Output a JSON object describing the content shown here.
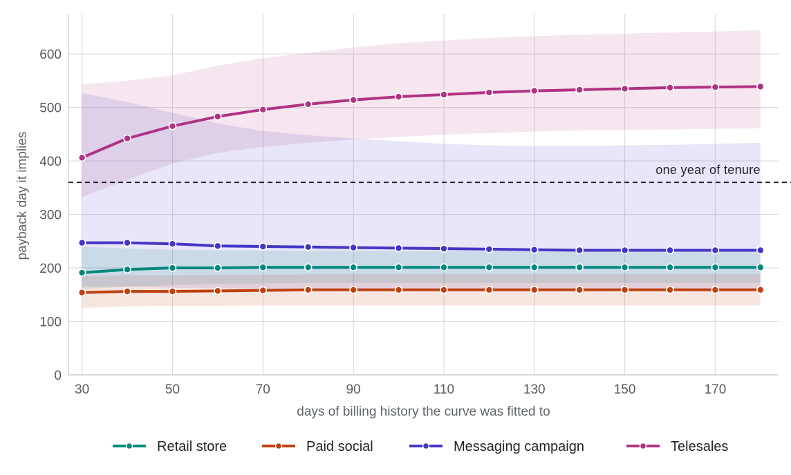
{
  "chart_data": {
    "type": "line",
    "title": "",
    "xlabel": "days of billing history the curve was fitted to",
    "ylabel": "payback day it implies",
    "x": [
      30,
      40,
      50,
      60,
      70,
      80,
      90,
      100,
      110,
      120,
      130,
      140,
      150,
      160,
      170,
      180
    ],
    "xticks": [
      30,
      50,
      70,
      90,
      110,
      130,
      150,
      170
    ],
    "yticks": [
      0,
      100,
      200,
      300,
      400,
      500,
      600
    ],
    "xlim": [
      27,
      184
    ],
    "ylim": [
      0,
      675
    ],
    "grid": true,
    "legend_position": "bottom",
    "reference_line": {
      "y": 360,
      "label": "one year of tenure",
      "style": "dashed",
      "color": "#1f2328"
    },
    "series": [
      {
        "name": "Retail store",
        "color": "#00897b",
        "values": [
          191,
          197,
          200,
          200,
          201,
          201,
          201,
          201,
          201,
          201,
          201,
          201,
          201,
          201,
          201,
          201
        ],
        "lower": [
          160,
          165,
          168,
          170,
          171,
          172,
          172,
          172,
          172,
          172,
          172,
          172,
          172,
          172,
          172,
          172
        ],
        "upper": [
          240,
          236,
          234,
          233,
          232,
          232,
          232,
          231,
          231,
          231,
          231,
          231,
          231,
          231,
          231,
          231
        ]
      },
      {
        "name": "Paid social",
        "color": "#bf400f",
        "values": [
          154,
          156,
          156,
          157,
          158,
          159,
          159,
          159,
          159,
          159,
          159,
          159,
          159,
          159,
          159,
          159
        ],
        "lower": [
          125,
          128,
          129,
          129,
          130,
          130,
          130,
          130,
          130,
          130,
          130,
          130,
          130,
          130,
          130,
          130
        ],
        "upper": [
          185,
          186,
          186,
          187,
          187,
          188,
          188,
          188,
          188,
          188,
          188,
          188,
          188,
          188,
          188,
          188
        ]
      },
      {
        "name": "Messaging campaign",
        "color": "#4434c8",
        "values": [
          247,
          247,
          245,
          241,
          240,
          239,
          238,
          237,
          236,
          235,
          234,
          233,
          233,
          233,
          233,
          233
        ],
        "lower": [
          165,
          165,
          163,
          162,
          161,
          160,
          160,
          159,
          159,
          159,
          158,
          158,
          158,
          158,
          158,
          158
        ],
        "upper": [
          527,
          510,
          490,
          470,
          456,
          448,
          442,
          437,
          432,
          429,
          428,
          428,
          429,
          430,
          432,
          434
        ]
      },
      {
        "name": "Telesales",
        "color": "#b03282",
        "values": [
          406,
          442,
          465,
          483,
          496,
          506,
          514,
          520,
          524,
          528,
          531,
          533,
          535,
          537,
          538,
          539
        ],
        "lower": [
          332,
          365,
          395,
          415,
          426,
          434,
          440,
          445,
          449,
          452,
          455,
          457,
          458,
          459,
          460,
          461
        ],
        "upper": [
          543,
          550,
          560,
          578,
          592,
          602,
          612,
          620,
          625,
          630,
          633,
          636,
          638,
          640,
          642,
          644
        ]
      }
    ]
  }
}
